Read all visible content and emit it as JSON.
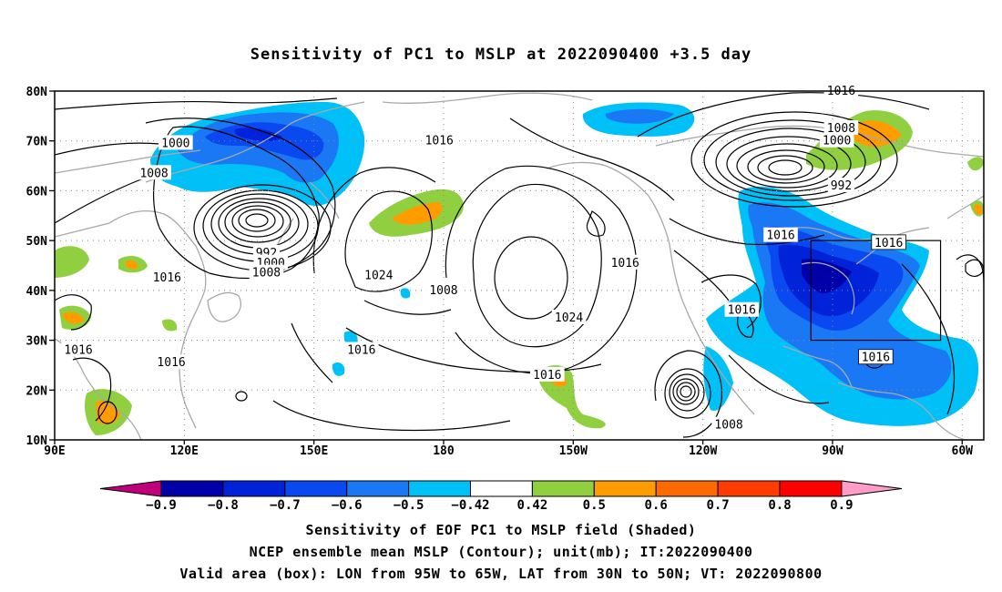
{
  "title": "Sensitivity of PC1 to MSLP at 2022090400 +3.5 day",
  "lat_labels": [
    {
      "lat": 80,
      "label": "80N"
    },
    {
      "lat": 70,
      "label": "70N"
    },
    {
      "lat": 60,
      "label": "60N"
    },
    {
      "lat": 50,
      "label": "50N"
    },
    {
      "lat": 40,
      "label": "40N"
    },
    {
      "lat": 30,
      "label": "30N"
    },
    {
      "lat": 20,
      "label": "20N"
    },
    {
      "lat": 10,
      "label": "10N"
    }
  ],
  "lon_labels": [
    {
      "lon": 90,
      "label": "90E"
    },
    {
      "lon": 120,
      "label": "120E"
    },
    {
      "lon": 150,
      "label": "150E"
    },
    {
      "lon": 180,
      "label": "180"
    },
    {
      "lon": 210,
      "label": "150W"
    },
    {
      "lon": 240,
      "label": "120W"
    },
    {
      "lon": 270,
      "label": "90W"
    },
    {
      "lon": 300,
      "label": "60W"
    }
  ],
  "colorbar": {
    "colors": [
      "#c0007a",
      "#0000a8",
      "#0022d8",
      "#0a48f0",
      "#1a78f5",
      "#00c0f8",
      "#ffffff",
      "#90d040",
      "#ff9c00",
      "#ff6a00",
      "#ff3c00",
      "#ff0000",
      "#ff9cc8"
    ],
    "labels": [
      "−0.9",
      "−0.8",
      "−0.7",
      "−0.6",
      "−0.5",
      "−0.42",
      "0.42",
      "0.5",
      "0.6",
      "0.7",
      "0.8",
      "0.9"
    ]
  },
  "contour_labels": [
    {
      "text": "1000",
      "lon": 118,
      "lat": 69.5
    },
    {
      "text": "1008",
      "lon": 113,
      "lat": 63.5
    },
    {
      "text": "1016",
      "lon": 179,
      "lat": 70.0
    },
    {
      "text": "992",
      "lon": 139,
      "lat": 47.5
    },
    {
      "text": "1000",
      "lon": 140,
      "lat": 45.5
    },
    {
      "text": "1008",
      "lon": 139,
      "lat": 43.5
    },
    {
      "text": "1016",
      "lon": 116,
      "lat": 42.5
    },
    {
      "text": "1024",
      "lon": 165,
      "lat": 43.0
    },
    {
      "text": "1008",
      "lon": 180,
      "lat": 40.0
    },
    {
      "text": "1024",
      "lon": 209,
      "lat": 34.5
    },
    {
      "text": "1016",
      "lon": 222,
      "lat": 45.5
    },
    {
      "text": "1016",
      "lon": 258,
      "lat": 51.0
    },
    {
      "text": "1016",
      "lon": 249,
      "lat": 36.0
    },
    {
      "text": "1016",
      "lon": 95.5,
      "lat": 28.0
    },
    {
      "text": "1016",
      "lon": 117,
      "lat": 25.5
    },
    {
      "text": "1016",
      "lon": 161,
      "lat": 28.0
    },
    {
      "text": "1016",
      "lon": 204,
      "lat": 23.0
    },
    {
      "text": "1008",
      "lon": 246,
      "lat": 13.0
    },
    {
      "text": "1016",
      "lon": 272,
      "lat": 80.0
    },
    {
      "text": "1008",
      "lon": 272,
      "lat": 72.5
    },
    {
      "text": "1000",
      "lon": 271,
      "lat": 70.0
    },
    {
      "text": "992",
      "lon": 272,
      "lat": 61.0
    },
    {
      "text": "1016",
      "lon": 283,
      "lat": 49.5
    },
    {
      "text": "1016",
      "lon": 280,
      "lat": 26.5
    }
  ],
  "highlighted_labels": [
    "1016"
  ],
  "box_area": {
    "lon_min": 265,
    "lon_max": 295,
    "lat_min": 30,
    "lat_max": 50
  },
  "captions": [
    "Sensitivity of EOF PC1 to MSLP field (Shaded)",
    "NCEP ensemble mean MSLP (Contour); unit(mb); IT:2022090400",
    "Valid area (box): LON from 95W to 65W, LAT from 30N to 50N; VT: 2022090800"
  ]
}
